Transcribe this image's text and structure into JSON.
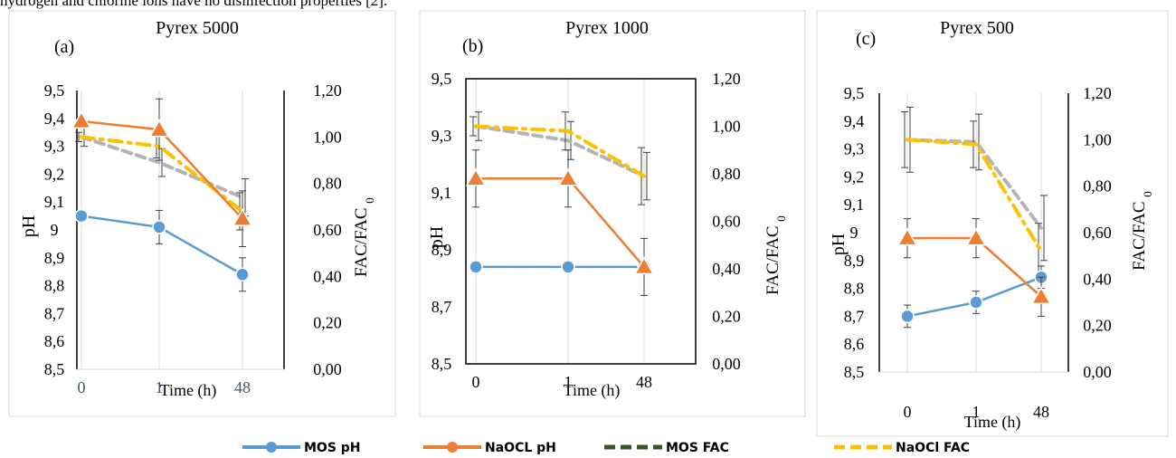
{
  "caption": "hydrogen and chlorine ions have no disinfection properties [2].",
  "legend": [
    {
      "label": "MOS pH",
      "color": "#5b9bd5",
      "style": "solid-dot"
    },
    {
      "label": "NaOCL pH",
      "color": "#ed7d31",
      "style": "solid-dot"
    },
    {
      "label": "MOS FAC",
      "color": "#375623",
      "style": "dash"
    },
    {
      "label": "NaOCl FAC",
      "color": "#ffc000",
      "style": "dash"
    }
  ],
  "chart_data": [
    {
      "type": "line",
      "panel": "(a)",
      "title": "Pyrex 5000",
      "xlabel": "Time (h)",
      "ylabel": "pH",
      "y2label": "FAC/FAC0",
      "categories": [
        "0",
        "1",
        "48"
      ],
      "ylim": [
        8.5,
        9.5
      ],
      "y2lim": [
        0,
        1.2
      ],
      "y_ticks": [
        "8,5",
        "8,6",
        "8,7",
        "8,8",
        "8,9",
        "9",
        "9,1",
        "9,2",
        "9,3",
        "9,4",
        "9,5"
      ],
      "y2_ticks": [
        "0,00",
        "0,20",
        "0,40",
        "0,60",
        "0,80",
        "1,00",
        "1,20"
      ],
      "grid": true,
      "series": [
        {
          "name": "MOS pH",
          "axis": "y",
          "values": [
            9.05,
            9.01,
            8.84
          ],
          "err": [
            0.0,
            0.06,
            0.06
          ]
        },
        {
          "name": "NaOCL pH",
          "axis": "y",
          "values": [
            9.39,
            9.36,
            9.04
          ],
          "err": [
            0.0,
            0.11,
            0.1
          ]
        },
        {
          "name": "MOS FAC",
          "axis": "y2",
          "values": [
            1.0,
            0.89,
            0.74
          ],
          "err": [
            0.04,
            0.06,
            0.08
          ]
        },
        {
          "name": "NaOCl FAC",
          "axis": "y2",
          "values": [
            1.0,
            0.96,
            0.68
          ],
          "err": [
            0.02,
            0.05,
            0.08
          ]
        }
      ]
    },
    {
      "type": "line",
      "panel": "(b)",
      "title": "Pyrex 1000",
      "xlabel": "Time (h)",
      "ylabel": "pH",
      "y2label": "FAC/FAC0",
      "categories": [
        "0",
        "1",
        "48"
      ],
      "ylim": [
        8.5,
        9.5
      ],
      "y2lim": [
        0,
        1.2
      ],
      "y_ticks": [
        "8,5",
        "8,7",
        "8,9",
        "9,1",
        "9,3",
        "9,5"
      ],
      "y2_ticks": [
        "0,00",
        "0,20",
        "0,40",
        "0,60",
        "0,80",
        "1,00",
        "1,20"
      ],
      "grid": true,
      "series": [
        {
          "name": "MOS pH",
          "axis": "y",
          "values": [
            8.84,
            8.84,
            8.84
          ],
          "err": [
            0,
            0,
            0
          ]
        },
        {
          "name": "NaOCL pH",
          "axis": "y",
          "values": [
            9.15,
            9.15,
            8.84
          ],
          "err": [
            0.1,
            0.1,
            0.1
          ]
        },
        {
          "name": "MOS FAC",
          "axis": "y2",
          "values": [
            1.0,
            0.94,
            0.79
          ],
          "err": [
            0.06,
            0.08,
            0.1
          ]
        },
        {
          "name": "NaOCl FAC",
          "axis": "y2",
          "values": [
            1.0,
            0.98,
            0.79
          ],
          "err": [
            0.04,
            0.08,
            0.12
          ]
        }
      ]
    },
    {
      "type": "line",
      "panel": "(c)",
      "title": "Pyrex 500",
      "xlabel": "Time (h)",
      "ylabel": "pH",
      "y2label": "FAC/FAC0",
      "categories": [
        "0",
        "1",
        "48"
      ],
      "ylim": [
        8.5,
        9.5
      ],
      "y2lim": [
        0,
        1.2
      ],
      "y_ticks": [
        "8,5",
        "8,6",
        "8,7",
        "8,8",
        "8,9",
        "9",
        "9,1",
        "9,2",
        "9,3",
        "9,4",
        "9,5"
      ],
      "y2_ticks": [
        "0,00",
        "0,20",
        "0,40",
        "0,60",
        "0,80",
        "1,00",
        "1,20"
      ],
      "grid": true,
      "series": [
        {
          "name": "MOS pH",
          "axis": "y",
          "values": [
            8.7,
            8.75,
            8.84
          ],
          "err": [
            0.04,
            0.04,
            0.04
          ]
        },
        {
          "name": "NaOCL pH",
          "axis": "y",
          "values": [
            8.98,
            8.98,
            8.77
          ],
          "err": [
            0.07,
            0.07,
            0.07
          ]
        },
        {
          "name": "MOS FAC",
          "axis": "y2",
          "values": [
            1.0,
            0.99,
            0.62
          ],
          "err": [
            0.14,
            0.12,
            0.14
          ]
        },
        {
          "name": "NaOCl FAC",
          "axis": "y2",
          "values": [
            1.0,
            0.98,
            0.52
          ],
          "err": [
            0.12,
            0.1,
            0.12
          ]
        }
      ]
    }
  ]
}
